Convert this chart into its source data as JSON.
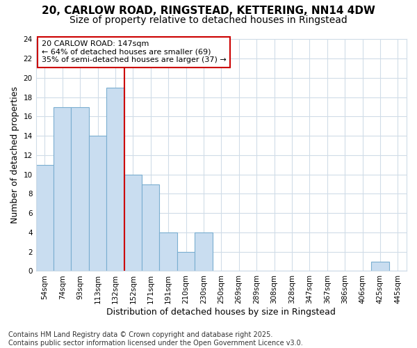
{
  "title1": "20, CARLOW ROAD, RINGSTEAD, KETTERING, NN14 4DW",
  "title2": "Size of property relative to detached houses in Ringstead",
  "xlabel": "Distribution of detached houses by size in Ringstead",
  "ylabel": "Number of detached properties",
  "categories": [
    "54sqm",
    "74sqm",
    "93sqm",
    "113sqm",
    "132sqm",
    "152sqm",
    "171sqm",
    "191sqm",
    "210sqm",
    "230sqm",
    "250sqm",
    "269sqm",
    "289sqm",
    "308sqm",
    "328sqm",
    "347sqm",
    "367sqm",
    "386sqm",
    "406sqm",
    "425sqm",
    "445sqm"
  ],
  "values": [
    11,
    17,
    17,
    14,
    19,
    10,
    9,
    4,
    2,
    4,
    0,
    0,
    0,
    0,
    0,
    0,
    0,
    0,
    0,
    1,
    0
  ],
  "bar_color": "#c9ddf0",
  "bar_edge_color": "#7aaed0",
  "vline_x": 4.5,
  "annotation_text": "20 CARLOW ROAD: 147sqm\n← 64% of detached houses are smaller (69)\n35% of semi-detached houses are larger (37) →",
  "annotation_box_color": "#ffffff",
  "annotation_box_edge_color": "#cc0000",
  "vline_color": "#cc0000",
  "ylim": [
    0,
    24
  ],
  "yticks": [
    0,
    2,
    4,
    6,
    8,
    10,
    12,
    14,
    16,
    18,
    20,
    22,
    24
  ],
  "footer_line1": "Contains HM Land Registry data © Crown copyright and database right 2025.",
  "footer_line2": "Contains public sector information licensed under the Open Government Licence v3.0.",
  "plot_bg_color": "#ffffff",
  "fig_bg_color": "#ffffff",
  "grid_color": "#d0dce8",
  "title1_fontsize": 11,
  "title2_fontsize": 10,
  "axis_label_fontsize": 9,
  "tick_fontsize": 7.5,
  "annotation_fontsize": 8,
  "footer_fontsize": 7
}
